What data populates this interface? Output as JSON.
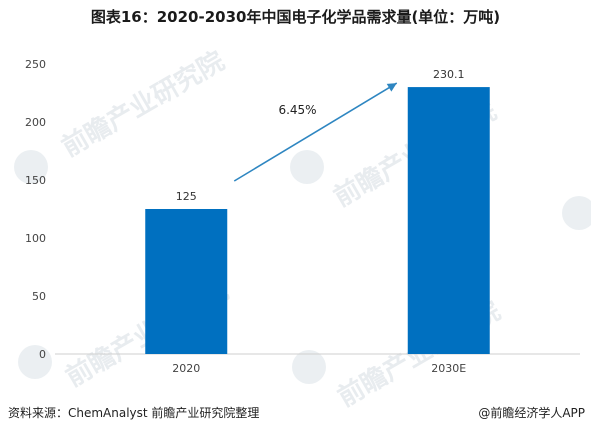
{
  "title": "图表16：2020-2030年中国电子化学品需求量(单位：万吨)",
  "chart_data": {
    "type": "bar",
    "categories": [
      "2020",
      "2030E"
    ],
    "values": [
      125,
      230.1
    ],
    "value_labels": [
      "125",
      "230.1"
    ],
    "ylim": [
      0,
      250
    ],
    "yticks": [
      0,
      50,
      100,
      150,
      200,
      250
    ],
    "annotation": "6.45%",
    "bar_color": "#0070C0",
    "arrow_color": "#2E86C1",
    "grid": false
  },
  "footer": {
    "source": "资料来源：ChemAnalyst 前瞻产业研究院整理",
    "brand": "@前瞻经济学人APP"
  },
  "watermark": {
    "text": "前瞻产业研究院"
  }
}
